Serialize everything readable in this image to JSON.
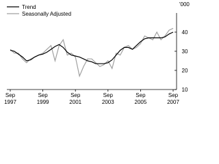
{
  "chart_data": {
    "type": "line",
    "y_unit": "'000",
    "categories": [
      "Sep 1997",
      null,
      null,
      null,
      null,
      null,
      null,
      null,
      "Sep 1999",
      null,
      null,
      null,
      null,
      null,
      null,
      null,
      "Sep 2001",
      null,
      null,
      null,
      null,
      null,
      null,
      null,
      "Sep 2003",
      null,
      null,
      null,
      null,
      null,
      null,
      null,
      "Sep 2005",
      null,
      null,
      null,
      null,
      null,
      null,
      null,
      "Sep 2007"
    ],
    "series": [
      {
        "name": "Trend",
        "color": "#000000",
        "values": [
          30.5,
          30,
          28.5,
          27,
          25,
          25.5,
          27,
          28,
          28.5,
          29.5,
          31,
          32.5,
          33.5,
          32,
          29.5,
          28,
          27.5,
          27,
          26,
          25,
          24.5,
          23.5,
          23.5,
          23.5,
          24,
          25.5,
          28,
          30.5,
          32,
          32,
          31,
          33,
          35,
          36.5,
          37,
          37,
          37,
          37,
          37.5,
          39,
          40
        ]
      },
      {
        "name": "Seasonally Adjusted",
        "color": "#a0a0a0",
        "values": [
          31,
          29,
          29,
          26,
          24,
          26,
          27,
          28,
          29,
          31,
          33,
          25,
          33,
          36,
          28,
          29,
          27,
          17,
          22,
          26,
          26,
          24,
          22,
          23,
          25,
          21,
          29,
          28,
          32,
          33,
          31,
          32,
          34,
          38,
          37,
          36,
          40,
          36,
          38,
          41,
          42
        ]
      }
    ],
    "ylim": [
      10,
      50
    ],
    "yticks": [
      10,
      20,
      30,
      40
    ]
  }
}
